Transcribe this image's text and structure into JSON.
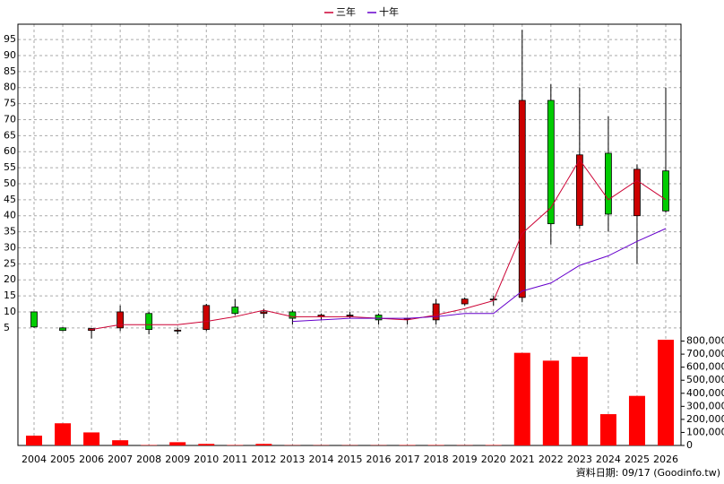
{
  "chart_data": {
    "type": "candlestick",
    "categories": [
      "2004",
      "2005",
      "2006",
      "2007",
      "2008",
      "2009",
      "2010",
      "2011",
      "2012",
      "2013",
      "2014",
      "2015",
      "2016",
      "2017",
      "2018",
      "2019",
      "2020",
      "2021",
      "2022",
      "2023",
      "2024",
      "2025",
      "2026"
    ],
    "candles": {
      "up_color": "#cc0000",
      "down_color": "#00cc00",
      "open": [
        10,
        5,
        4.2,
        5,
        9.5,
        4,
        4.5,
        11.5,
        9.5,
        10,
        8.5,
        9,
        9,
        8,
        7.5,
        12.5,
        14,
        14.5,
        76,
        37,
        59.5,
        40,
        54
      ],
      "high": [
        10,
        5.2,
        4.9,
        12,
        10,
        5,
        12.5,
        14,
        11,
        10.5,
        9.5,
        10,
        9.5,
        8.2,
        14,
        14.5,
        15,
        98,
        81,
        80,
        71,
        56,
        80
      ],
      "low": [
        5,
        4,
        1.7,
        4,
        3,
        3,
        4,
        9,
        8,
        6,
        7.5,
        8,
        6,
        6,
        6,
        12,
        12,
        13,
        31,
        36,
        35,
        25,
        41
      ],
      "close": [
        5.3,
        4.2,
        4.8,
        10,
        4.5,
        4.3,
        12,
        9.5,
        10,
        8,
        9,
        9,
        7.5,
        8,
        12.5,
        14,
        14,
        76,
        37.5,
        59,
        40.5,
        54.5,
        41.5
      ]
    },
    "series": [
      {
        "name": "三年",
        "color": "#cc0033",
        "values": [
          null,
          null,
          4.5,
          6,
          6,
          6,
          7,
          8.5,
          10.5,
          8.5,
          8.5,
          8.5,
          8,
          7.5,
          9,
          11,
          13.5,
          34.5,
          42.5,
          57.5,
          45,
          51,
          45
        ]
      },
      {
        "name": "十年",
        "color": "#6600cc",
        "values": [
          null,
          null,
          null,
          null,
          null,
          null,
          null,
          null,
          null,
          7,
          7.5,
          8,
          8,
          8,
          8.5,
          9.5,
          9.5,
          16.5,
          19,
          24.5,
          27.5,
          32,
          36
        ]
      }
    ],
    "volume": {
      "axis": "y2",
      "color": "#ff0000",
      "values": [
        75000,
        170000,
        100000,
        40000,
        3000,
        25000,
        12000,
        3000,
        12000,
        2000,
        2000,
        2000,
        2000,
        3000,
        3000,
        2000,
        3000,
        710000,
        650000,
        680000,
        240000,
        380000,
        810000
      ]
    },
    "ylim": [
      0,
      100
    ],
    "yticks": [
      5,
      10,
      15,
      20,
      25,
      30,
      35,
      40,
      45,
      50,
      55,
      60,
      65,
      70,
      75,
      80,
      85,
      90,
      95
    ],
    "y2lim": [
      0,
      900000
    ],
    "y2ticks": [
      0,
      {
        "value": 100000,
        "label": "100,000"
      },
      {
        "value": 200000,
        "label": "200,000"
      },
      {
        "value": 300000,
        "label": "300,000"
      },
      {
        "value": 400000,
        "label": "400,000"
      },
      {
        "value": 500000,
        "label": "500,000"
      },
      {
        "value": 600000,
        "label": "600,000"
      },
      {
        "value": 700000,
        "label": "700,000"
      },
      {
        "value": 800000,
        "label": "800,000"
      }
    ],
    "grid": true,
    "legend": "top",
    "footnote": "資料日期: 09/17 (Goodinfo.tw)"
  }
}
